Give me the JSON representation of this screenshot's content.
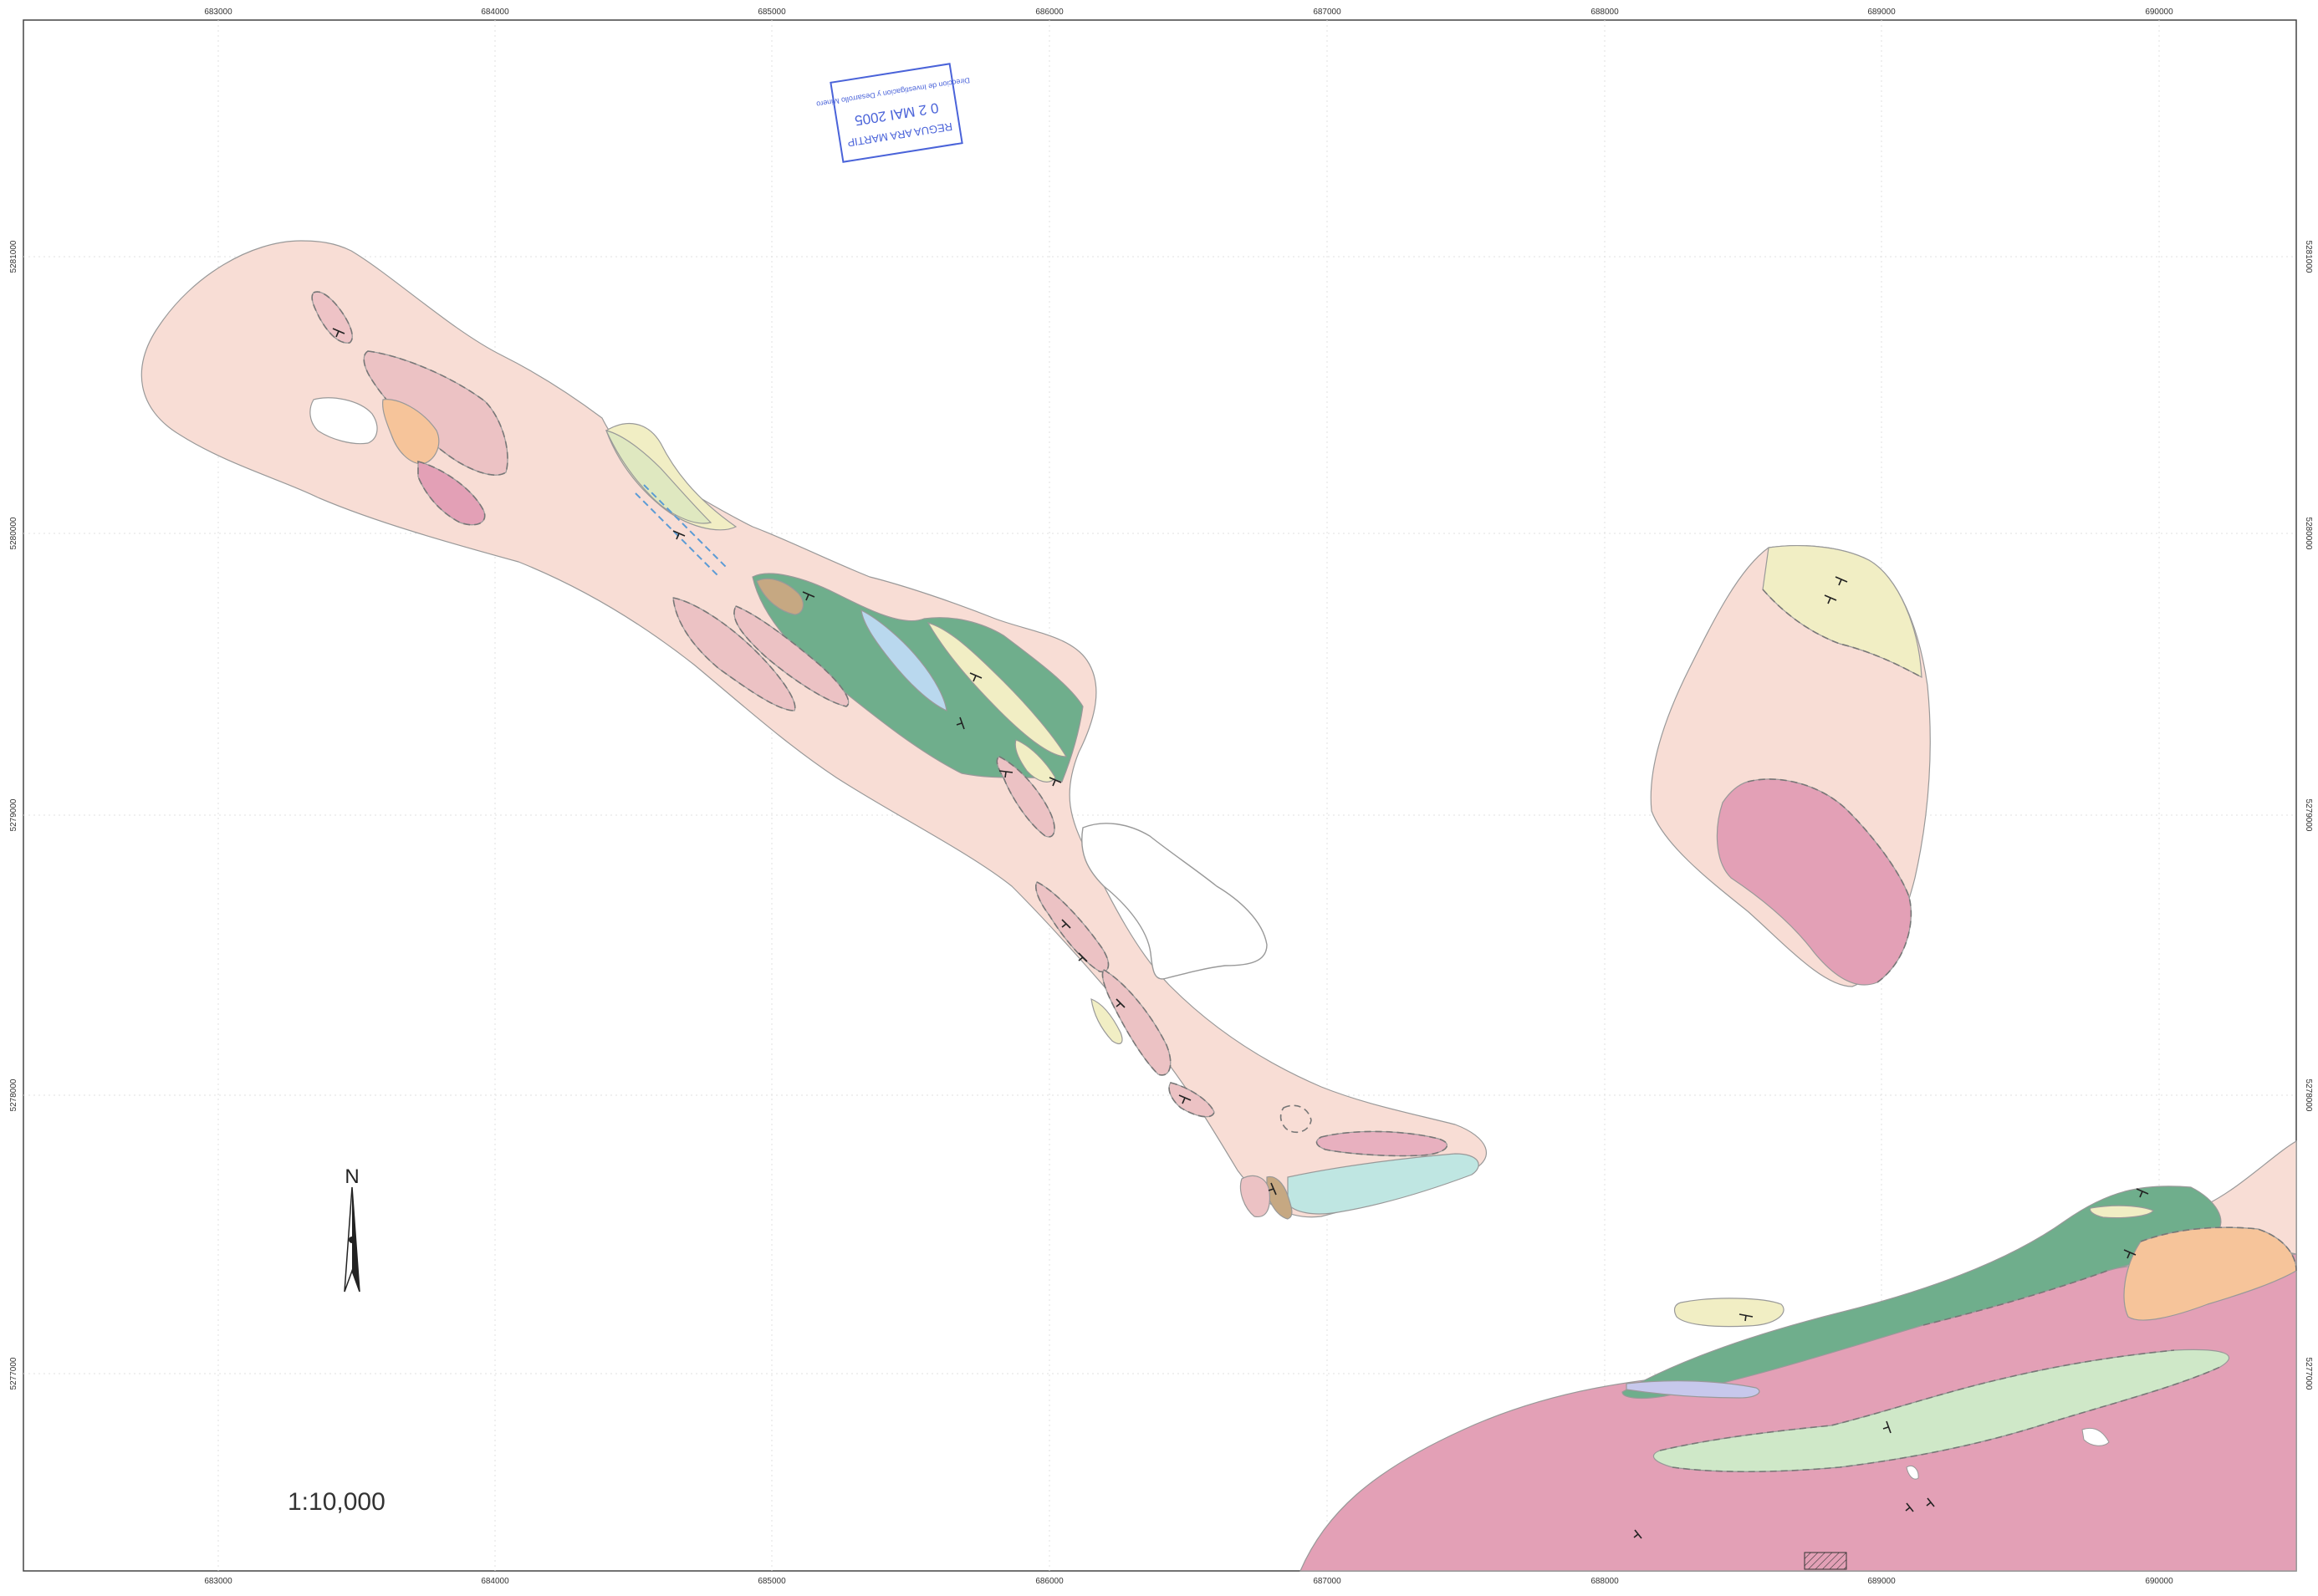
{
  "map": {
    "scale_label": "1:10,000",
    "north_label": "N",
    "stamp": {
      "line1": "REGUA ARA MARTIP",
      "line2": "0 2 MAI 2005",
      "line3": "Direccion de Investigacion y Desarrollo Minero"
    },
    "easting_ticks": [
      "683000",
      "684000",
      "685000",
      "686000",
      "687000",
      "688000",
      "689000",
      "690000"
    ],
    "northing_ticks": [
      "5281000",
      "5280000",
      "5279000",
      "5278000",
      "5277000"
    ],
    "unit_colors": {
      "pale_pink": "#f8ddd5",
      "pink": "#e8a8b8",
      "dark_pink": "#e3a0b6",
      "green": "#6fae8c",
      "pale_green": "#cfe8c8",
      "pale_yellow": "#f1eec4",
      "light_blue": "#b9d8ee",
      "lavender": "#c7c8ec",
      "orange": "#f6c49a",
      "teal": "#bfe6e2",
      "brown": "#c6a882"
    }
  }
}
